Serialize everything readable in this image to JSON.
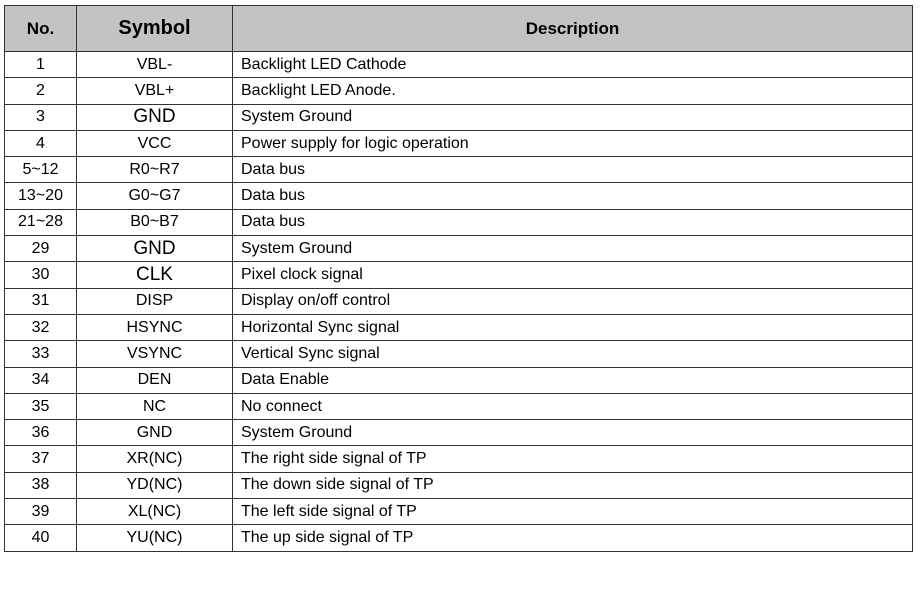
{
  "headers": {
    "no": "No.",
    "symbol": "Symbol",
    "description": "Description"
  },
  "header_bg": "#c3c3c3",
  "rows": [
    {
      "no": "1",
      "symbol": "VBL-",
      "description": "Backlight LED Cathode"
    },
    {
      "no": "2",
      "symbol": "VBL+",
      "description": "Backlight LED Anode."
    },
    {
      "no": "3",
      "symbol": "GND",
      "description": "System Ground",
      "large": true
    },
    {
      "no": "4",
      "symbol": "VCC",
      "description": "Power supply for logic operation"
    },
    {
      "no": "5~12",
      "symbol": "R0~R7",
      "description": "Data bus"
    },
    {
      "no": "13~20",
      "symbol": "G0~G7",
      "description": "Data bus"
    },
    {
      "no": "21~28",
      "symbol": "B0~B7",
      "description": "Data bus"
    },
    {
      "no": "29",
      "symbol": "GND",
      "description": "System Ground",
      "large": true
    },
    {
      "no": "30",
      "symbol": "CLK",
      "description": "Pixel clock signal",
      "large": true
    },
    {
      "no": "31",
      "symbol": "DISP",
      "description": "Display on/off control"
    },
    {
      "no": "32",
      "symbol": "HSYNC",
      "description": "Horizontal Sync signal"
    },
    {
      "no": "33",
      "symbol": "VSYNC",
      "description": "Vertical Sync signal"
    },
    {
      "no": "34",
      "symbol": "DEN",
      "description": "Data Enable"
    },
    {
      "no": "35",
      "symbol": "NC",
      "description": "No connect"
    },
    {
      "no": "36",
      "symbol": "GND",
      "description": "System Ground"
    },
    {
      "no": "37",
      "symbol": "XR(NC)",
      "description": "The right side signal of TP"
    },
    {
      "no": "38",
      "symbol": "YD(NC)",
      "description": "The down side signal of TP"
    },
    {
      "no": "39",
      "symbol": "XL(NC)",
      "description": "The left side signal of TP"
    },
    {
      "no": "40",
      "symbol": "YU(NC)",
      "description": "The up side signal of TP"
    }
  ]
}
